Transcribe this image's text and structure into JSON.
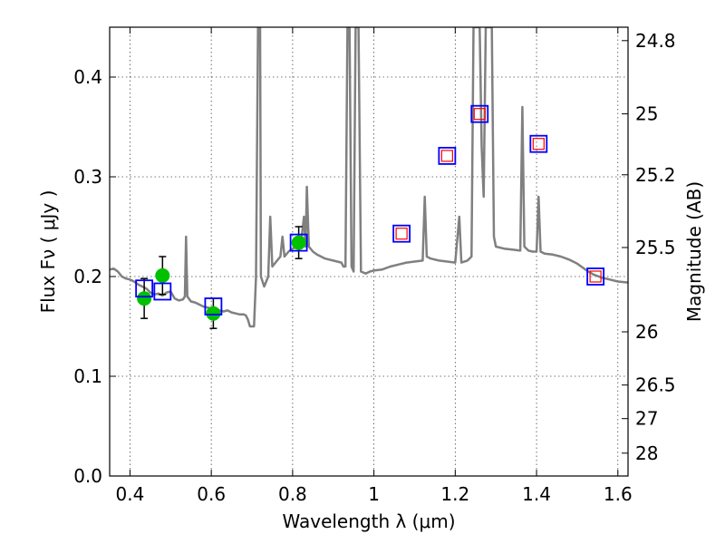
{
  "chart_data": {
    "type": "scatter",
    "xlabel": "Wavelength  λ (μm)",
    "ylabel": "Flux  Fν  ( μJy )",
    "y2label": "Magnitude (AB)",
    "xlim": [
      0.35,
      1.625
    ],
    "ylim": [
      0.0,
      0.45
    ],
    "grid": true,
    "x_ticks": [
      {
        "value": 0.4,
        "label": "0.4"
      },
      {
        "value": 0.6,
        "label": "0.6"
      },
      {
        "value": 0.8,
        "label": "0.8"
      },
      {
        "value": 1.0,
        "label": "1"
      },
      {
        "value": 1.2,
        "label": "1.2"
      },
      {
        "value": 1.4,
        "label": "1.4"
      },
      {
        "value": 1.6,
        "label": "1.6"
      }
    ],
    "y_ticks": [
      {
        "value": 0.0,
        "label": "0.0"
      },
      {
        "value": 0.1,
        "label": "0.1"
      },
      {
        "value": 0.2,
        "label": "0.2"
      },
      {
        "value": 0.3,
        "label": "0.3"
      },
      {
        "value": 0.4,
        "label": "0.4"
      }
    ],
    "y2_ticks": [
      {
        "value": 24.8,
        "label": "24.8"
      },
      {
        "value": 25.0,
        "label": "25"
      },
      {
        "value": 25.2,
        "label": "25.2"
      },
      {
        "value": 25.5,
        "label": "25.5"
      },
      {
        "value": 26.0,
        "label": "26"
      },
      {
        "value": 26.5,
        "label": "26.5"
      },
      {
        "value": 27.0,
        "label": "27"
      },
      {
        "value": 28.0,
        "label": "28"
      }
    ],
    "series": [
      {
        "kind": "line",
        "color": "#808080",
        "points": [
          [
            0.35,
            0.207
          ],
          [
            0.36,
            0.208
          ],
          [
            0.37,
            0.205
          ],
          [
            0.38,
            0.2
          ],
          [
            0.39,
            0.198
          ],
          [
            0.4,
            0.197
          ],
          [
            0.41,
            0.195
          ],
          [
            0.42,
            0.192
          ],
          [
            0.43,
            0.19
          ],
          [
            0.44,
            0.188
          ],
          [
            0.45,
            0.184
          ],
          [
            0.46,
            0.182
          ],
          [
            0.47,
            0.183
          ],
          [
            0.48,
            0.181
          ],
          [
            0.49,
            0.184
          ],
          [
            0.5,
            0.185
          ],
          [
            0.51,
            0.178
          ],
          [
            0.52,
            0.176
          ],
          [
            0.53,
            0.177
          ],
          [
            0.535,
            0.18
          ],
          [
            0.538,
            0.24
          ],
          [
            0.541,
            0.18
          ],
          [
            0.55,
            0.175
          ],
          [
            0.56,
            0.174
          ],
          [
            0.57,
            0.172
          ],
          [
            0.58,
            0.17
          ],
          [
            0.59,
            0.169
          ],
          [
            0.6,
            0.168
          ],
          [
            0.61,
            0.167
          ],
          [
            0.62,
            0.166
          ],
          [
            0.63,
            0.165
          ],
          [
            0.64,
            0.166
          ],
          [
            0.65,
            0.164
          ],
          [
            0.66,
            0.163
          ],
          [
            0.67,
            0.162
          ],
          [
            0.68,
            0.162
          ],
          [
            0.685,
            0.161
          ],
          [
            0.69,
            0.157
          ],
          [
            0.695,
            0.15
          ],
          [
            0.7,
            0.15
          ],
          [
            0.705,
            0.15
          ],
          [
            0.71,
            0.2
          ],
          [
            0.715,
            0.45
          ],
          [
            0.72,
            0.45
          ],
          [
            0.722,
            0.2
          ],
          [
            0.73,
            0.19
          ],
          [
            0.74,
            0.2
          ],
          [
            0.745,
            0.26
          ],
          [
            0.75,
            0.21
          ],
          [
            0.76,
            0.215
          ],
          [
            0.77,
            0.22
          ],
          [
            0.775,
            0.24
          ],
          [
            0.78,
            0.22
          ],
          [
            0.79,
            0.225
          ],
          [
            0.8,
            0.228
          ],
          [
            0.81,
            0.23
          ],
          [
            0.82,
            0.232
          ],
          [
            0.828,
            0.26
          ],
          [
            0.832,
            0.23
          ],
          [
            0.835,
            0.29
          ],
          [
            0.84,
            0.23
          ],
          [
            0.85,
            0.225
          ],
          [
            0.86,
            0.222
          ],
          [
            0.87,
            0.22
          ],
          [
            0.88,
            0.218
          ],
          [
            0.89,
            0.217
          ],
          [
            0.9,
            0.216
          ],
          [
            0.91,
            0.215
          ],
          [
            0.92,
            0.214
          ],
          [
            0.925,
            0.21
          ],
          [
            0.93,
            0.21
          ],
          [
            0.935,
            0.45
          ],
          [
            0.94,
            0.45
          ],
          [
            0.945,
            0.21
          ],
          [
            0.95,
            0.205
          ],
          [
            0.955,
            0.45
          ],
          [
            0.962,
            0.45
          ],
          [
            0.968,
            0.205
          ],
          [
            0.98,
            0.203
          ],
          [
            0.99,
            0.205
          ],
          [
            1.0,
            0.206
          ],
          [
            1.02,
            0.207
          ],
          [
            1.04,
            0.21
          ],
          [
            1.06,
            0.212
          ],
          [
            1.08,
            0.214
          ],
          [
            1.1,
            0.215
          ],
          [
            1.12,
            0.216
          ],
          [
            1.125,
            0.28
          ],
          [
            1.13,
            0.22
          ],
          [
            1.14,
            0.218
          ],
          [
            1.16,
            0.216
          ],
          [
            1.18,
            0.215
          ],
          [
            1.2,
            0.214
          ],
          [
            1.21,
            0.26
          ],
          [
            1.215,
            0.214
          ],
          [
            1.23,
            0.216
          ],
          [
            1.24,
            0.22
          ],
          [
            1.245,
            0.45
          ],
          [
            1.26,
            0.45
          ],
          [
            1.265,
            0.33
          ],
          [
            1.27,
            0.28
          ],
          [
            1.275,
            0.45
          ],
          [
            1.29,
            0.45
          ],
          [
            1.295,
            0.24
          ],
          [
            1.3,
            0.23
          ],
          [
            1.32,
            0.228
          ],
          [
            1.34,
            0.227
          ],
          [
            1.36,
            0.226
          ],
          [
            1.365,
            0.37
          ],
          [
            1.37,
            0.23
          ],
          [
            1.38,
            0.226
          ],
          [
            1.39,
            0.225
          ],
          [
            1.4,
            0.225
          ],
          [
            1.405,
            0.28
          ],
          [
            1.41,
            0.225
          ],
          [
            1.42,
            0.223
          ],
          [
            1.44,
            0.222
          ],
          [
            1.46,
            0.22
          ],
          [
            1.48,
            0.217
          ],
          [
            1.5,
            0.213
          ],
          [
            1.52,
            0.207
          ],
          [
            1.54,
            0.202
          ],
          [
            1.56,
            0.199
          ],
          [
            1.58,
            0.197
          ],
          [
            1.6,
            0.195
          ],
          [
            1.625,
            0.194
          ]
        ]
      },
      {
        "kind": "blue-squares",
        "color": "#0000ff",
        "points": [
          [
            0.435,
            0.188
          ],
          [
            0.48,
            0.185
          ],
          [
            0.605,
            0.17
          ],
          [
            0.815,
            0.234
          ],
          [
            1.068,
            0.243
          ],
          [
            1.18,
            0.321
          ],
          [
            1.26,
            0.363
          ],
          [
            1.405,
            0.333
          ],
          [
            1.545,
            0.2
          ]
        ]
      },
      {
        "kind": "red-squares",
        "color": "#ff0000",
        "points": [
          [
            1.068,
            0.243
          ],
          [
            1.18,
            0.321
          ],
          [
            1.26,
            0.363
          ],
          [
            1.405,
            0.333
          ],
          [
            1.545,
            0.2
          ]
        ]
      },
      {
        "kind": "green-points",
        "color": "#00c000",
        "points": [
          {
            "x": 0.435,
            "y": 0.178,
            "err": 0.02
          },
          {
            "x": 0.48,
            "y": 0.201,
            "err": 0.019
          },
          {
            "x": 0.605,
            "y": 0.163,
            "err": 0.015
          },
          {
            "x": 0.815,
            "y": 0.234,
            "err": 0.016
          }
        ]
      }
    ]
  }
}
